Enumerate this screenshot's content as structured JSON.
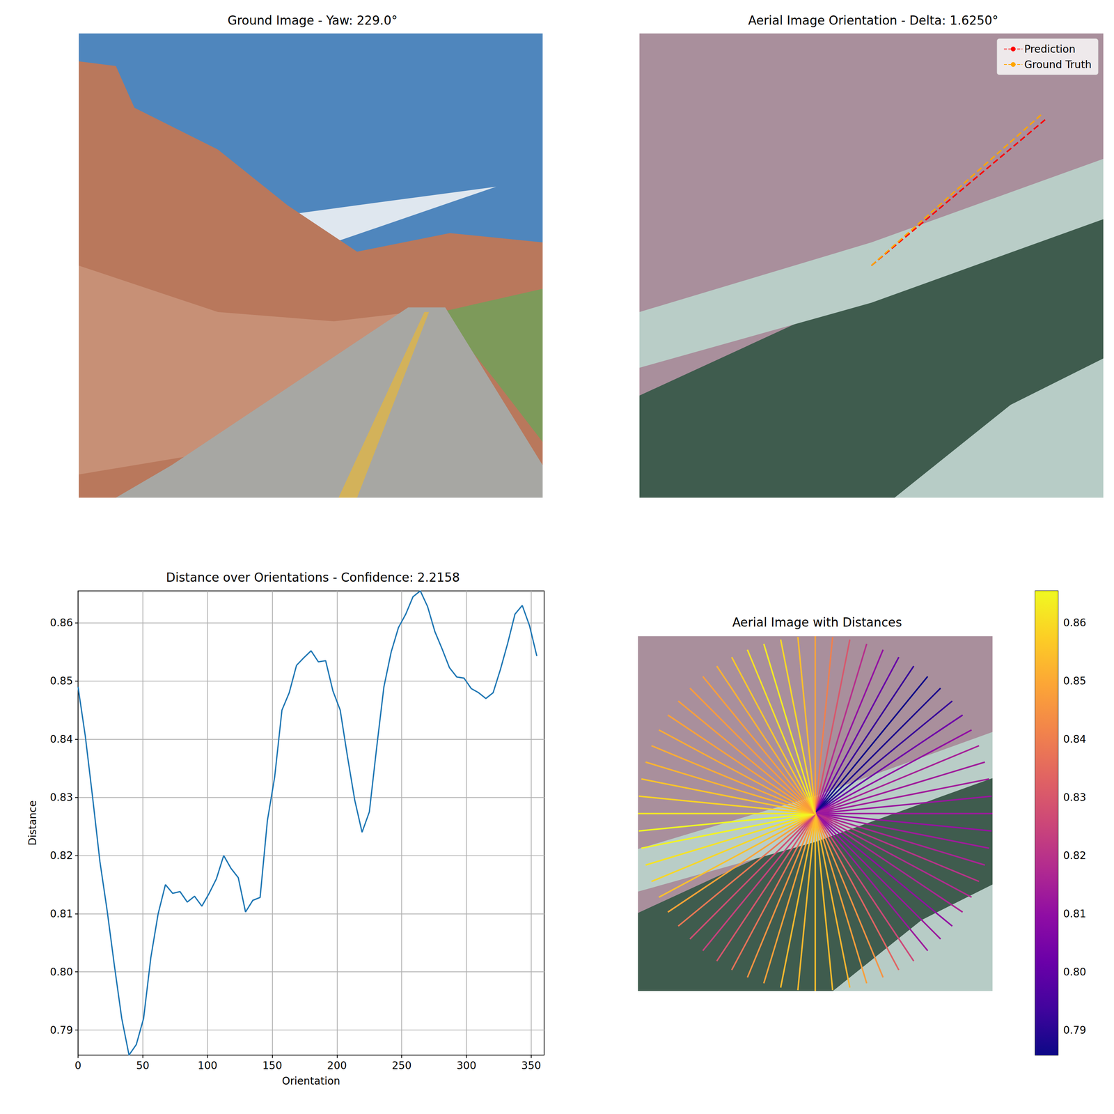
{
  "chart_data": [
    {
      "type": "image",
      "title": "Ground Image - Yaw: 229.0°"
    },
    {
      "type": "image",
      "title": "Aerial Image Orientation - Delta: 1.6250°",
      "legend": "upper right",
      "series": [
        {
          "name": "Prediction",
          "color": "#ff0000",
          "line_style": "dashed",
          "angle": 50.0
        },
        {
          "name": "Ground Truth",
          "color": "#ffa500",
          "line_style": "dashed",
          "angle": 48.4
        }
      ]
    },
    {
      "type": "line",
      "title": "Distance over Orientations - Confidence: 2.2158",
      "x_label": "Orientation",
      "y_label": "Distance",
      "color": "#1f77b4",
      "grid": true,
      "x": [
        0,
        5.625,
        11.25,
        16.875,
        22.5,
        28.125,
        33.75,
        39.375,
        45,
        50.625,
        56.25,
        61.875,
        67.5,
        73.125,
        78.75,
        84.375,
        90,
        95.625,
        101.25,
        106.875,
        112.5,
        118.125,
        123.75,
        129.375,
        135,
        140.625,
        146.25,
        151.875,
        157.5,
        163.125,
        168.75,
        174.375,
        180,
        185.625,
        191.25,
        196.875,
        202.5,
        208.125,
        213.75,
        219.375,
        225,
        230.625,
        236.25,
        241.875,
        247.5,
        253.125,
        258.75,
        264.375,
        270,
        275.625,
        281.25,
        286.875,
        292.5,
        298.125,
        303.75,
        309.375,
        315,
        320.625,
        326.25,
        331.875,
        337.5,
        343.125,
        348.75,
        354.375
      ],
      "values": [
        0.849,
        0.8405,
        0.83,
        0.819,
        0.8105,
        0.801,
        0.792,
        0.7857,
        0.7875,
        0.792,
        0.8025,
        0.81,
        0.815,
        0.8135,
        0.8138,
        0.812,
        0.813,
        0.8113,
        0.8135,
        0.816,
        0.82,
        0.8178,
        0.8162,
        0.8103,
        0.8123,
        0.8128,
        0.826,
        0.8335,
        0.845,
        0.848,
        0.8527,
        0.854,
        0.8552,
        0.8533,
        0.8535,
        0.8483,
        0.845,
        0.837,
        0.8295,
        0.824,
        0.8275,
        0.8385,
        0.849,
        0.855,
        0.8592,
        0.8615,
        0.8645,
        0.8655,
        0.8628,
        0.8585,
        0.8555,
        0.8523,
        0.8507,
        0.8505,
        0.8487,
        0.848,
        0.847,
        0.848,
        0.852,
        0.8565,
        0.8615,
        0.863,
        0.8595,
        0.8543
      ],
      "xlim": [
        0,
        360
      ],
      "xticks": [
        0,
        50,
        100,
        150,
        200,
        250,
        300,
        350
      ],
      "ylim": [
        0.7857,
        0.8655
      ],
      "yticks": [
        0.79,
        {
          "value": 0.8,
          "label": "0.80"
        },
        0.81,
        0.82,
        0.83,
        0.84,
        0.85,
        0.86
      ]
    },
    {
      "type": "radial",
      "title": "Aerial Image with Distances",
      "x": [
        0,
        5.625,
        11.25,
        16.875,
        22.5,
        28.125,
        33.75,
        39.375,
        45,
        50.625,
        56.25,
        61.875,
        67.5,
        73.125,
        78.75,
        84.375,
        90,
        95.625,
        101.25,
        106.875,
        112.5,
        118.125,
        123.75,
        129.375,
        135,
        140.625,
        146.25,
        151.875,
        157.5,
        163.125,
        168.75,
        174.375,
        180,
        185.625,
        191.25,
        196.875,
        202.5,
        208.125,
        213.75,
        219.375,
        225,
        230.625,
        236.25,
        241.875,
        247.5,
        253.125,
        258.75,
        264.375,
        270,
        275.625,
        281.25,
        286.875,
        292.5,
        298.125,
        303.75,
        309.375,
        315,
        320.625,
        326.25,
        331.875,
        337.5,
        343.125,
        348.75,
        354.375
      ],
      "values": [
        0.849,
        0.8405,
        0.83,
        0.819,
        0.8105,
        0.801,
        0.792,
        0.7857,
        0.7875,
        0.792,
        0.8025,
        0.81,
        0.815,
        0.8135,
        0.8138,
        0.812,
        0.813,
        0.8113,
        0.8135,
        0.816,
        0.82,
        0.8178,
        0.8162,
        0.8103,
        0.8123,
        0.8128,
        0.826,
        0.8335,
        0.845,
        0.848,
        0.8527,
        0.854,
        0.8552,
        0.8533,
        0.8535,
        0.8483,
        0.845,
        0.837,
        0.8295,
        0.824,
        0.8275,
        0.8385,
        0.849,
        0.855,
        0.8592,
        0.8615,
        0.8645,
        0.8655,
        0.8628,
        0.8585,
        0.8555,
        0.8523,
        0.8507,
        0.8505,
        0.8487,
        0.848,
        0.847,
        0.848,
        0.852,
        0.8565,
        0.8615,
        0.863,
        0.8595,
        0.8543
      ],
      "colorbar": {
        "range": [
          0.7857,
          0.8655
        ],
        "ticks": [
          0.79,
          {
            "value": 0.8,
            "label": "0.80"
          },
          0.81,
          0.82,
          0.83,
          0.84,
          0.85,
          0.86
        ]
      }
    }
  ]
}
